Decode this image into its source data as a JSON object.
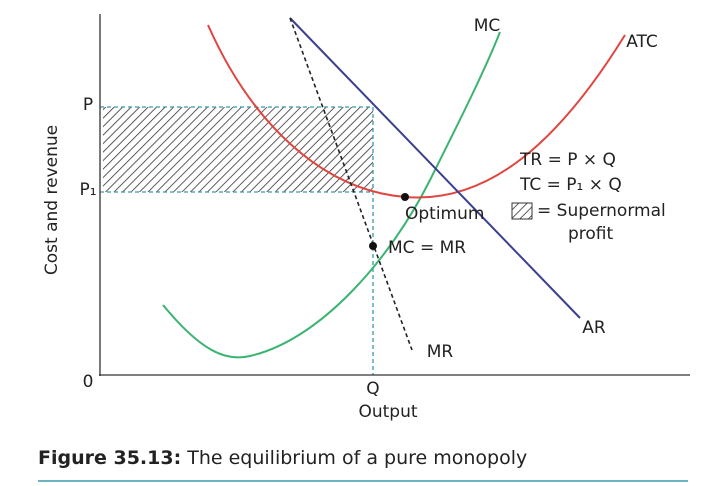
{
  "axes": {
    "y_label": "Cost and revenue",
    "x_label": "Output",
    "origin": "0",
    "p": "P",
    "p1": "P₁",
    "q": "Q"
  },
  "curves": {
    "mc": "MC",
    "atc": "ATC",
    "ar": "AR",
    "mr": "MR"
  },
  "annotations": {
    "optimum": "Optimum",
    "mc_mr": "MC = MR",
    "tr": "TR = P × Q",
    "tc": "TC = P₁ × Q",
    "legend_1": "= Supernormal",
    "legend_2": "profit"
  },
  "caption": {
    "label": "Figure 35.13:",
    "text": "The equilibrium of a pure monopoly"
  }
}
